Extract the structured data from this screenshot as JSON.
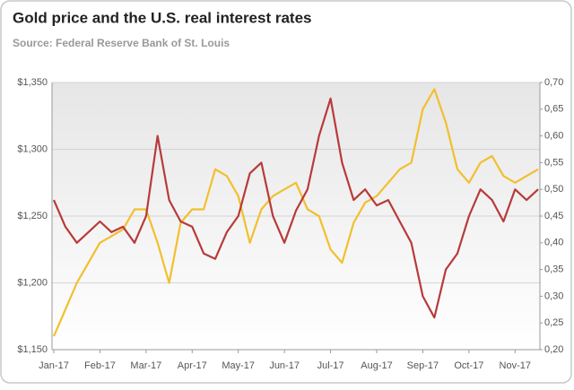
{
  "chart_data": {
    "type": "line",
    "title": "Gold price and the U.S. real interest rates",
    "subtitle": "Source: Federal Reserve Bank of St. Louis",
    "categories": [
      "Jan-17",
      null,
      null,
      null,
      "Feb-17",
      null,
      null,
      null,
      "Mar-17",
      null,
      null,
      null,
      "Apr-17",
      null,
      null,
      null,
      "May-17",
      null,
      null,
      null,
      "Jun-17",
      null,
      null,
      null,
      "Jul-17",
      null,
      null,
      null,
      "Aug-17",
      null,
      null,
      null,
      "Sep-17",
      null,
      null,
      null,
      "Oct-17",
      null,
      null,
      null,
      "Nov-17",
      null,
      null
    ],
    "series": [
      {
        "name": "Gold price",
        "color": "#f2bf2e",
        "axis": "y",
        "values": [
          1160,
          1180,
          1200,
          1215,
          1230,
          1235,
          1240,
          1255,
          1255,
          1230,
          1200,
          1245,
          1255,
          1255,
          1285,
          1280,
          1265,
          1230,
          1255,
          1265,
          1270,
          1275,
          1255,
          1250,
          1225,
          1215,
          1245,
          1260,
          1265,
          1275,
          1285,
          1290,
          1330,
          1345,
          1320,
          1285,
          1275,
          1290,
          1295,
          1280,
          1275,
          1280,
          1285
        ]
      },
      {
        "name": "Real interest rate",
        "color": "#b83a3a",
        "axis": "y2",
        "values": [
          0.48,
          0.43,
          0.4,
          0.42,
          0.44,
          0.42,
          0.43,
          0.4,
          0.45,
          0.6,
          0.48,
          0.44,
          0.43,
          0.38,
          0.37,
          0.42,
          0.45,
          0.53,
          0.55,
          0.45,
          0.4,
          0.46,
          0.5,
          0.6,
          0.67,
          0.55,
          0.48,
          0.5,
          0.47,
          0.48,
          0.44,
          0.4,
          0.3,
          0.26,
          0.35,
          0.38,
          0.45,
          0.5,
          0.48,
          0.44,
          0.5,
          0.48,
          0.5
        ]
      }
    ],
    "ylim": [
      1150,
      1350
    ],
    "yticks": [
      {
        "value": 1150,
        "label": "$1,150"
      },
      {
        "value": 1200,
        "label": "$1,200"
      },
      {
        "value": 1250,
        "label": "$1,250"
      },
      {
        "value": 1300,
        "label": "$1,300"
      },
      {
        "value": 1350,
        "label": "$1,350"
      }
    ],
    "y2lim": [
      0.2,
      0.7
    ],
    "y2ticks": [
      {
        "value": 0.2,
        "label": "0,20"
      },
      {
        "value": 0.25,
        "label": "0,25"
      },
      {
        "value": 0.3,
        "label": "0,30"
      },
      {
        "value": 0.35,
        "label": "0,35"
      },
      {
        "value": 0.4,
        "label": "0,40"
      },
      {
        "value": 0.45,
        "label": "0,45"
      },
      {
        "value": 0.5,
        "label": "0,50"
      },
      {
        "value": 0.55,
        "label": "0,55"
      },
      {
        "value": 0.6,
        "label": "0,60"
      },
      {
        "value": 0.65,
        "label": "0,65"
      },
      {
        "value": 0.7,
        "label": "0,70"
      }
    ],
    "grid": true
  }
}
